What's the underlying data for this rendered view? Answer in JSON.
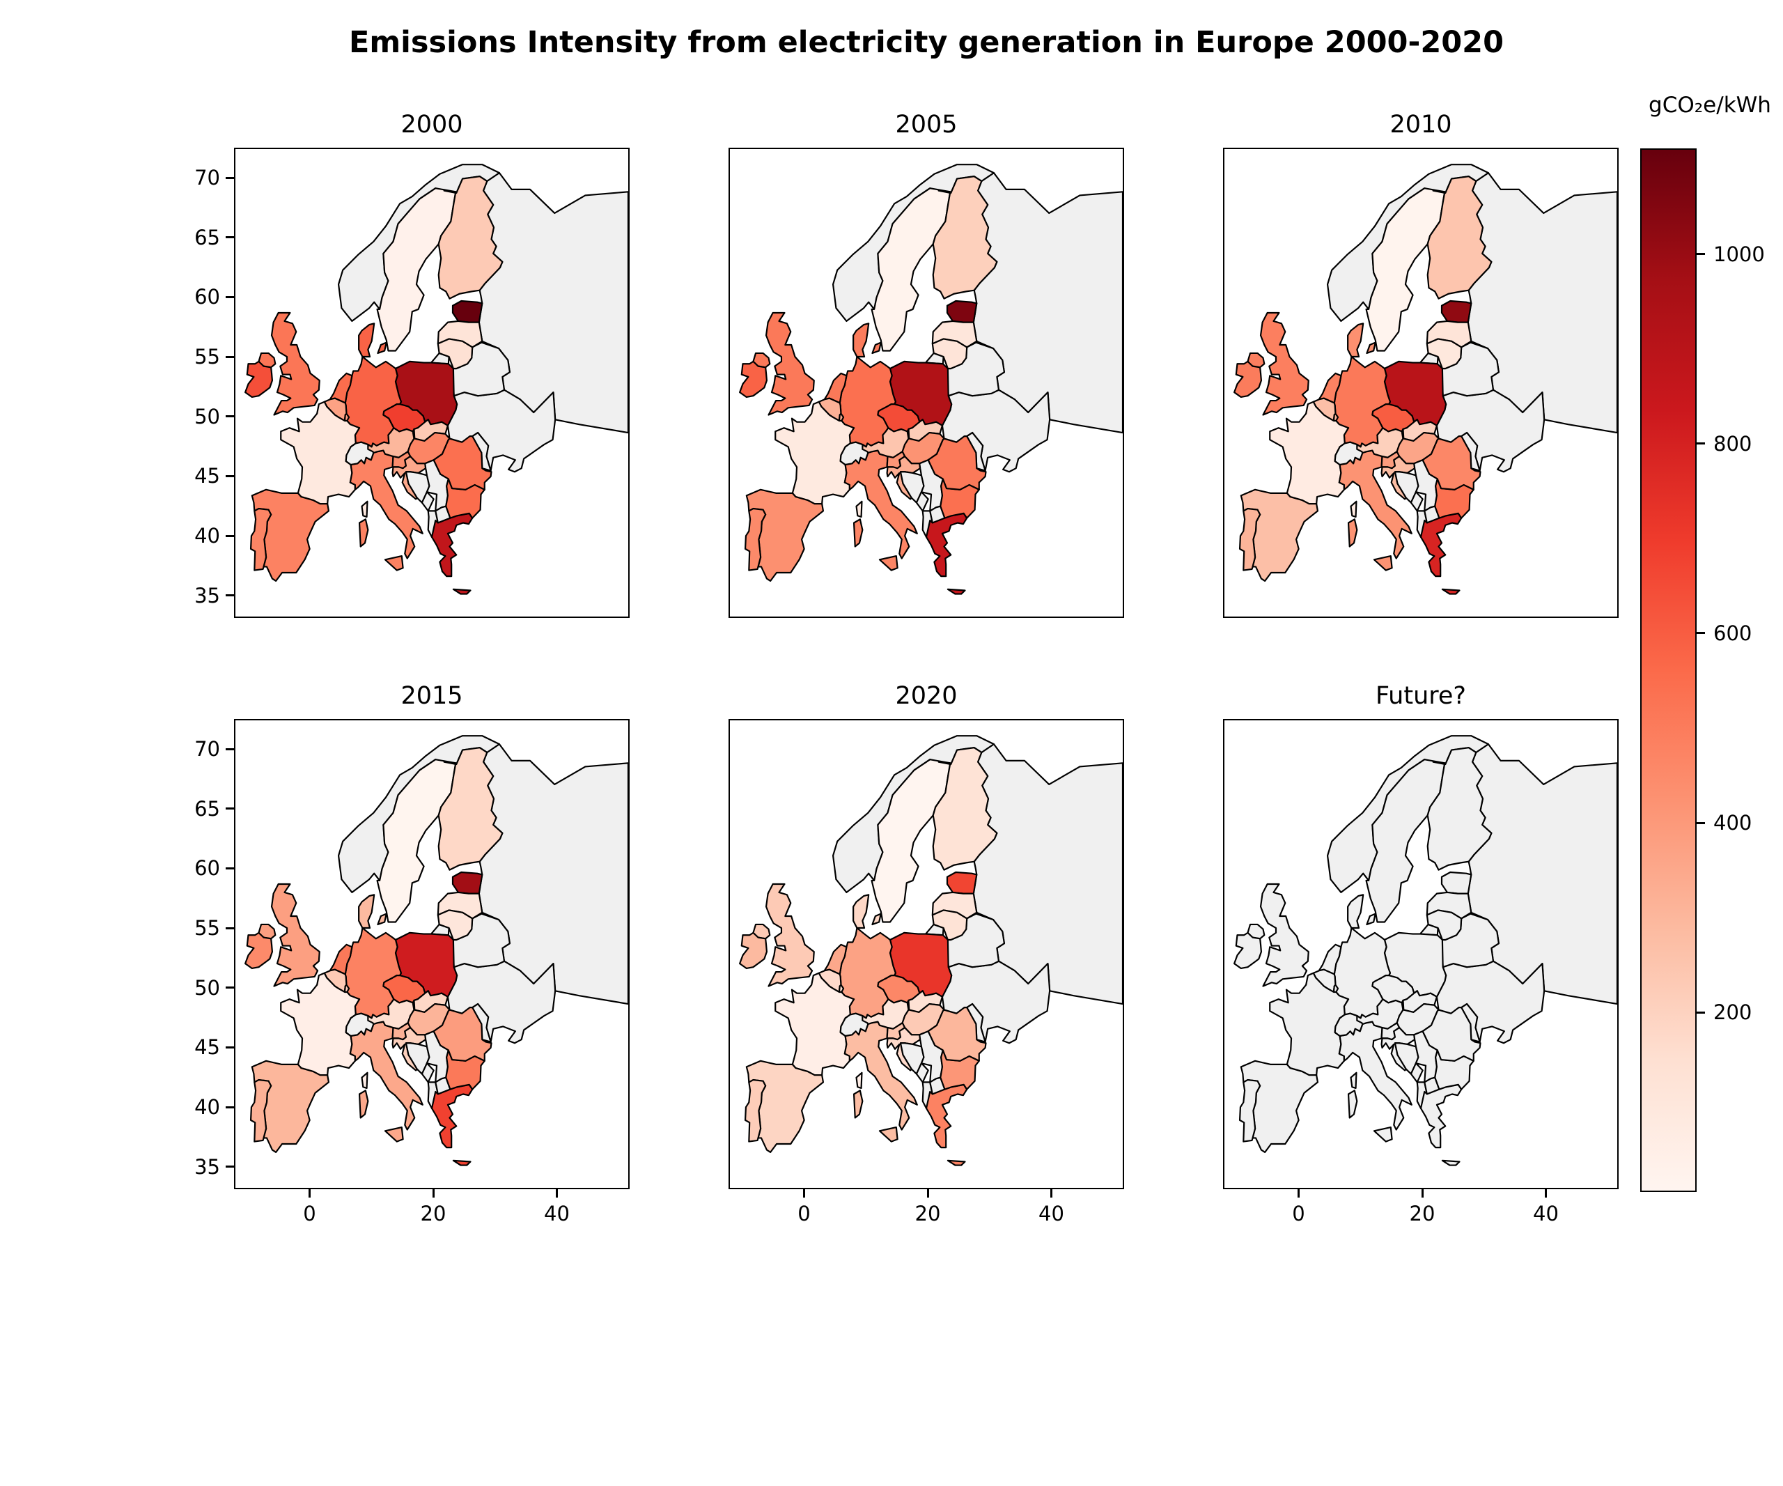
{
  "title": "Emissions Intensity from electricity generation in Europe 2000-2020",
  "colorbar": {
    "label": "gCO₂e/kWh",
    "ticks": [
      200,
      400,
      600,
      800,
      1000
    ]
  },
  "subplot_titles": [
    "2000",
    "2005",
    "2010",
    "2015",
    "2020",
    "Future?"
  ],
  "chart_data": {
    "type": "heatmap",
    "subtype": "choropleth_map_small_multiples",
    "title": "Emissions Intensity from electricity generation in Europe 2000-2020",
    "unit": "gCO₂e/kWh",
    "colormap": "Reds",
    "colormap_stops": [
      "#fff5f0",
      "#fee0d2",
      "#fcbba1",
      "#fc9272",
      "#fb6a4a",
      "#ef3b2c",
      "#cb181d",
      "#a50f15",
      "#67000d"
    ],
    "vmin": 12,
    "vmax": 1110,
    "no_data_color": "#f0f0f0",
    "border_color": "#000000",
    "legend_position": "right",
    "grid": false,
    "panels": [
      "2000",
      "2005",
      "2010",
      "2015",
      "2020",
      "Future?"
    ],
    "series_years": [
      "2000",
      "2005",
      "2010",
      "2015",
      "2020"
    ],
    "x_ticks": [
      0,
      20,
      40
    ],
    "y_ticks": [
      35,
      40,
      45,
      50,
      55,
      60,
      65,
      70
    ],
    "x_tick_labels_shown_on": "bottom row only",
    "y_tick_labels_shown_on": "left column only",
    "lon_range": [
      -12,
      52
    ],
    "lat_range": [
      33,
      72.4
    ],
    "emissions_by_country": {
      "Estonia": [
        1110,
        1060,
        1020,
        980,
        670
      ],
      "Poland": [
        960,
        930,
        900,
        820,
        720
      ],
      "Greece": [
        870,
        850,
        790,
        680,
        480
      ],
      "Czechia": [
        690,
        650,
        600,
        570,
        460
      ],
      "Ireland": [
        640,
        580,
        500,
        450,
        290
      ],
      "Germany": [
        580,
        540,
        510,
        480,
        370
      ],
      "Denmark": [
        580,
        500,
        430,
        290,
        180
      ],
      "Netherlands": [
        550,
        510,
        480,
        510,
        350
      ],
      "Bulgaria": [
        550,
        540,
        540,
        510,
        410
      ],
      "Romania": [
        540,
        510,
        460,
        390,
        300
      ],
      "United Kingdom": [
        520,
        510,
        490,
        380,
        230
      ],
      "Italy": [
        480,
        470,
        420,
        350,
        280
      ],
      "Spain": [
        480,
        430,
        270,
        300,
        190
      ],
      "Portugal": [
        470,
        450,
        310,
        320,
        220
      ],
      "Hungary": [
        470,
        420,
        360,
        310,
        230
      ],
      "Slovenia": [
        440,
        410,
        390,
        320,
        250
      ],
      "Luxembourg": [
        380,
        330,
        300,
        220,
        150
      ],
      "Belgium": [
        370,
        320,
        270,
        230,
        170
      ],
      "Croatia": [
        350,
        330,
        280,
        210,
        170
      ],
      "Austria": [
        300,
        250,
        210,
        150,
        110
      ],
      "Finland": [
        230,
        210,
        250,
        180,
        130
      ],
      "Slovakia": [
        230,
        220,
        200,
        180,
        140
      ],
      "Lithuania": [
        140,
        120,
        100,
        110,
        130
      ],
      "Latvia": [
        120,
        110,
        120,
        110,
        110
      ],
      "France": [
        90,
        85,
        75,
        55,
        55
      ],
      "Sweden": [
        35,
        25,
        20,
        15,
        12
      ],
      "Norway": null,
      "Switzerland": null,
      "Russia": null,
      "Belarus": null,
      "Ukraine": null,
      "Moldova": null,
      "Bosnia and Herzegovina": null,
      "Serbia": null,
      "Montenegro": null,
      "Albania": null,
      "North Macedonia": null
    }
  }
}
